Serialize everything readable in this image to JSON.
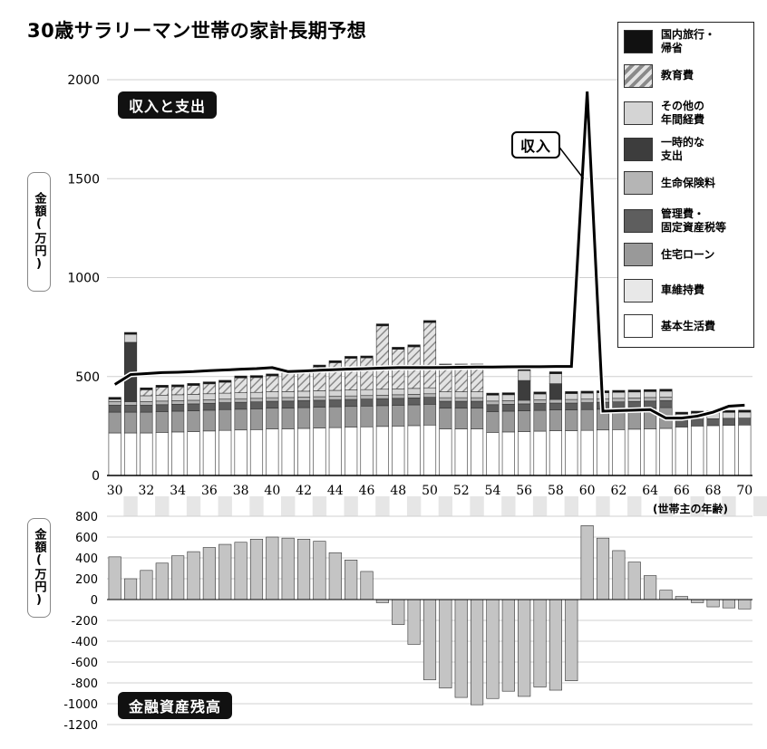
{
  "title": "30歳サラリーマン世帯の家計長期予想",
  "top_chart_label": "収入と支出",
  "bottom_chart_label": "金融資産残高",
  "ylabel_top": "金額(万円)",
  "ylabel_bottom": "金額(万円)",
  "income_callout": "収入",
  "xlabel_note": "(世帯主の年齢)",
  "legend": [
    {
      "label": "国内旅行・\n帰省",
      "color": "#111111",
      "hatch": false
    },
    {
      "label": "教育費",
      "color": "#bdbdbd",
      "hatch": true
    },
    {
      "label": "その他の\n年間経費",
      "color": "#d4d4d4",
      "hatch": false
    },
    {
      "label": "一時的な\n支出",
      "color": "#3d3d3d",
      "hatch": false
    },
    {
      "label": "生命保険料",
      "color": "#b5b5b5",
      "hatch": false
    },
    {
      "label": "管理費・\n固定資産税等",
      "color": "#5e5e5e",
      "hatch": false
    },
    {
      "label": "住宅ローン",
      "color": "#999999",
      "hatch": false
    },
    {
      "label": "車維持費",
      "color": "#e8e8e8",
      "hatch": false
    },
    {
      "label": "基本生活費",
      "color": "#ffffff",
      "hatch": false
    }
  ],
  "chart_data": [
    {
      "type": "bar",
      "stacked": true,
      "title": "収入と支出",
      "ylabel": "金額(万円)",
      "xlabel": "(世帯主の年齢)",
      "ylim": [
        0,
        2000
      ],
      "yticks": [
        0,
        500,
        1000,
        1500,
        2000
      ],
      "xticks": [
        "30",
        "32",
        "34",
        "36",
        "38",
        "40",
        "42",
        "44",
        "46",
        "48",
        "50",
        "52",
        "54",
        "56",
        "58",
        "60",
        "62",
        "64",
        "66",
        "68",
        "70"
      ],
      "categories": [
        30,
        31,
        32,
        33,
        34,
        35,
        36,
        37,
        38,
        39,
        40,
        41,
        42,
        43,
        44,
        45,
        46,
        47,
        48,
        49,
        50,
        51,
        52,
        53,
        54,
        55,
        56,
        57,
        58,
        59,
        60,
        61,
        62,
        63,
        64,
        65,
        66,
        67,
        68,
        69,
        70
      ],
      "series": [
        {
          "name": "基本生活費",
          "values": [
            215,
            215,
            215,
            218,
            220,
            222,
            225,
            228,
            230,
            232,
            235,
            236,
            238,
            240,
            242,
            244,
            246,
            248,
            250,
            252,
            255,
            235,
            235,
            235,
            218,
            220,
            222,
            224,
            226,
            226,
            228,
            230,
            232,
            234,
            236,
            238,
            245,
            250,
            252,
            254,
            255
          ]
        },
        {
          "name": "車維持費",
          "values": [
            0,
            0,
            0,
            0,
            0,
            0,
            0,
            0,
            0,
            0,
            0,
            0,
            0,
            0,
            0,
            0,
            0,
            0,
            0,
            0,
            0,
            0,
            0,
            0,
            0,
            0,
            0,
            0,
            0,
            0,
            0,
            0,
            0,
            0,
            0,
            0,
            0,
            0,
            0,
            0,
            0
          ]
        },
        {
          "name": "住宅ローン",
          "values": [
            105,
            105,
            105,
            105,
            105,
            105,
            105,
            105,
            105,
            105,
            105,
            105,
            105,
            105,
            105,
            105,
            105,
            105,
            105,
            105,
            105,
            105,
            105,
            105,
            105,
            105,
            105,
            105,
            105,
            105,
            105,
            105,
            105,
            105,
            105,
            105,
            0,
            0,
            0,
            0,
            0
          ]
        },
        {
          "name": "管理費・固定資産税等",
          "values": [
            35,
            35,
            35,
            35,
            35,
            35,
            35,
            35,
            35,
            35,
            35,
            35,
            35,
            35,
            35,
            35,
            35,
            35,
            35,
            35,
            35,
            35,
            35,
            35,
            35,
            35,
            35,
            35,
            35,
            35,
            35,
            35,
            35,
            35,
            35,
            35,
            35,
            35,
            35,
            35,
            35
          ]
        },
        {
          "name": "生命保険料",
          "values": [
            18,
            18,
            18,
            18,
            18,
            18,
            18,
            18,
            18,
            18,
            18,
            18,
            18,
            18,
            18,
            18,
            18,
            18,
            18,
            18,
            18,
            18,
            18,
            18,
            18,
            18,
            18,
            18,
            18,
            18,
            18,
            18,
            18,
            18,
            18,
            18,
            0,
            0,
            0,
            0,
            0
          ]
        },
        {
          "name": "一時的な支出",
          "values": [
            0,
            300,
            0,
            0,
            0,
            0,
            0,
            0,
            0,
            0,
            0,
            0,
            0,
            0,
            0,
            0,
            0,
            0,
            0,
            0,
            0,
            0,
            0,
            0,
            0,
            0,
            100,
            0,
            80,
            0,
            0,
            0,
            0,
            0,
            0,
            0,
            0,
            0,
            0,
            0,
            0
          ]
        },
        {
          "name": "その他の年間経費",
          "values": [
            12,
            40,
            30,
            30,
            30,
            30,
            30,
            30,
            30,
            30,
            30,
            30,
            30,
            30,
            30,
            30,
            30,
            30,
            30,
            30,
            30,
            30,
            30,
            30,
            30,
            30,
            50,
            30,
            50,
            30,
            30,
            30,
            30,
            30,
            30,
            30,
            30,
            30,
            30,
            30,
            30
          ]
        },
        {
          "name": "教育費",
          "values": [
            0,
            0,
            30,
            40,
            40,
            45,
            50,
            55,
            75,
            75,
            80,
            100,
            100,
            120,
            140,
            160,
            160,
            320,
            200,
            210,
            330,
            130,
            130,
            130,
            0,
            0,
            0,
            0,
            0,
            0,
            0,
            0,
            0,
            0,
            0,
            0,
            0,
            0,
            0,
            0,
            0
          ]
        },
        {
          "name": "国内旅行・帰省",
          "values": [
            10,
            10,
            10,
            10,
            10,
            10,
            10,
            10,
            10,
            10,
            10,
            10,
            10,
            10,
            10,
            10,
            10,
            10,
            10,
            10,
            10,
            10,
            10,
            10,
            10,
            10,
            10,
            10,
            10,
            10,
            10,
            10,
            10,
            10,
            10,
            10,
            10,
            10,
            10,
            10,
            10
          ]
        }
      ],
      "income": {
        "name": "収入",
        "values": [
          460,
          510,
          515,
          520,
          522,
          525,
          530,
          533,
          537,
          540,
          545,
          525,
          528,
          532,
          535,
          538,
          540,
          543,
          545,
          545,
          545,
          546,
          547,
          548,
          548,
          549,
          550,
          550,
          551,
          551,
          1940,
          325,
          328,
          330,
          333,
          290,
          290,
          300,
          320,
          350,
          355
        ]
      }
    },
    {
      "type": "bar",
      "title": "金融資産残高",
      "ylabel": "金額(万円)",
      "ylim": [
        -1200,
        800
      ],
      "yticks": [
        800,
        600,
        400,
        200,
        0,
        -200,
        -400,
        -600,
        -800,
        -1000,
        -1200
      ],
      "categories": [
        30,
        31,
        32,
        33,
        34,
        35,
        36,
        37,
        38,
        39,
        40,
        41,
        42,
        43,
        44,
        45,
        46,
        47,
        48,
        49,
        50,
        51,
        52,
        53,
        54,
        55,
        56,
        57,
        58,
        59,
        60,
        61,
        62,
        63,
        64,
        65,
        66,
        67,
        68,
        69,
        70
      ],
      "values": [
        410,
        200,
        280,
        350,
        420,
        460,
        500,
        530,
        550,
        580,
        600,
        590,
        580,
        560,
        450,
        380,
        270,
        -30,
        -240,
        -430,
        -770,
        -850,
        -940,
        -1010,
        -950,
        -880,
        -930,
        -840,
        -870,
        -780,
        710,
        590,
        470,
        360,
        230,
        90,
        30,
        -30,
        -70,
        -80,
        -90
      ]
    }
  ]
}
